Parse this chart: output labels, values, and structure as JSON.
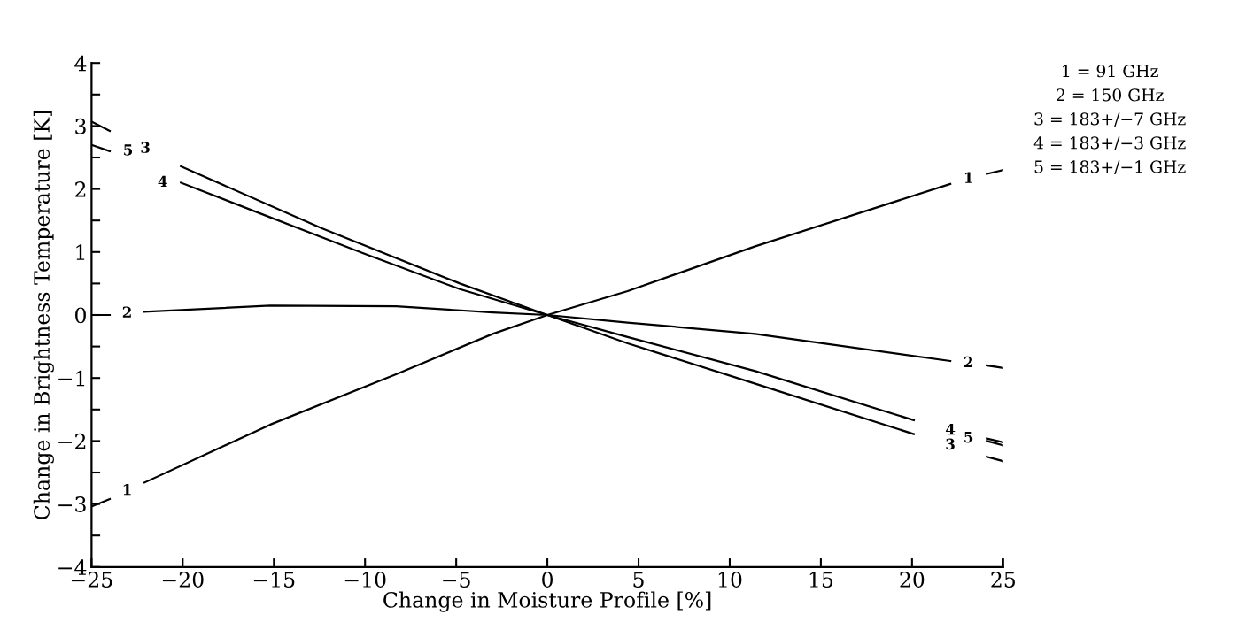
{
  "chart_data": {
    "type": "line",
    "xlabel": "Change in Moisture Profile [%]",
    "ylabel": "Change in Brightness Temperature [K]",
    "xlim": [
      -25,
      25
    ],
    "ylim": [
      -4,
      4
    ],
    "xticks": [
      -25,
      -20,
      -15,
      -10,
      -5,
      0,
      5,
      10,
      15,
      20,
      25
    ],
    "yticks": [
      -4,
      {
        "value": -3.5,
        "label": null
      },
      -3,
      {
        "value": -2.5,
        "label": null
      },
      -2,
      {
        "value": -1.5,
        "label": null
      },
      -1,
      {
        "value": -0.5,
        "label": null
      },
      0,
      {
        "value": 0.5,
        "label": null
      },
      1,
      {
        "value": 1.5,
        "label": null
      },
      2,
      {
        "value": 2.5,
        "label": null
      },
      3,
      {
        "value": 3.5,
        "label": null
      },
      4
    ],
    "grid": false,
    "legend": false,
    "marker": "none",
    "line_style": "solid",
    "series": [
      {
        "name": "1",
        "color": "#000000",
        "x": [
          -25,
          -24,
          null,
          -22.1,
          -15.2,
          -8.3,
          -3,
          0,
          4.4,
          11.4,
          22.1,
          null,
          24.1,
          25
        ],
        "values": [
          -3.04,
          -2.92,
          null,
          -2.66,
          -1.74,
          -0.94,
          -0.3,
          0,
          0.38,
          1.09,
          2.08,
          null,
          2.24,
          2.3
        ]
      },
      {
        "name": "2",
        "color": "#000000",
        "x": [
          -25,
          -24,
          null,
          -22.1,
          -15.2,
          -8.3,
          -3,
          0,
          4.4,
          11.4,
          22.1,
          null,
          24.1,
          25
        ],
        "values": [
          0,
          0,
          null,
          0.05,
          0.15,
          0.14,
          0.04,
          0,
          -0.12,
          -0.3,
          -0.73,
          null,
          -0.8,
          -0.84
        ]
      },
      {
        "name": "3",
        "color": "#000000",
        "x": [
          -25,
          -24,
          null,
          -20.1,
          -12.4,
          -4.8,
          0,
          4.4,
          11.4,
          20.1,
          null,
          24.1,
          25
        ],
        "values": [
          3.07,
          2.92,
          null,
          2.36,
          1.38,
          0.5,
          0,
          -0.45,
          -1.09,
          -1.89,
          null,
          -2.25,
          -2.32
        ]
      },
      {
        "name": "4",
        "color": "#000000",
        "x": [
          -20.1,
          -15.2,
          -10,
          -4.8,
          0,
          4.4,
          11.4,
          20.1,
          null,
          24.1,
          25
        ],
        "values": [
          2.1,
          1.55,
          0.97,
          0.41,
          0,
          -0.35,
          -0.89,
          -1.67,
          null,
          -2.0,
          -2.07
        ]
      },
      {
        "name": "5",
        "color": "#000000",
        "x": [
          -25,
          -24,
          null,
          24.1,
          25
        ],
        "values": [
          2.7,
          2.6,
          null,
          -1.96,
          -2.02
        ]
      }
    ],
    "annotations": [
      "1 = 91 GHz",
      "2 = 150 GHz",
      "3 = 183+/−7 GHz",
      "4 = 183+/−3 GHz",
      "5 = 183+/−1 GHz"
    ]
  }
}
